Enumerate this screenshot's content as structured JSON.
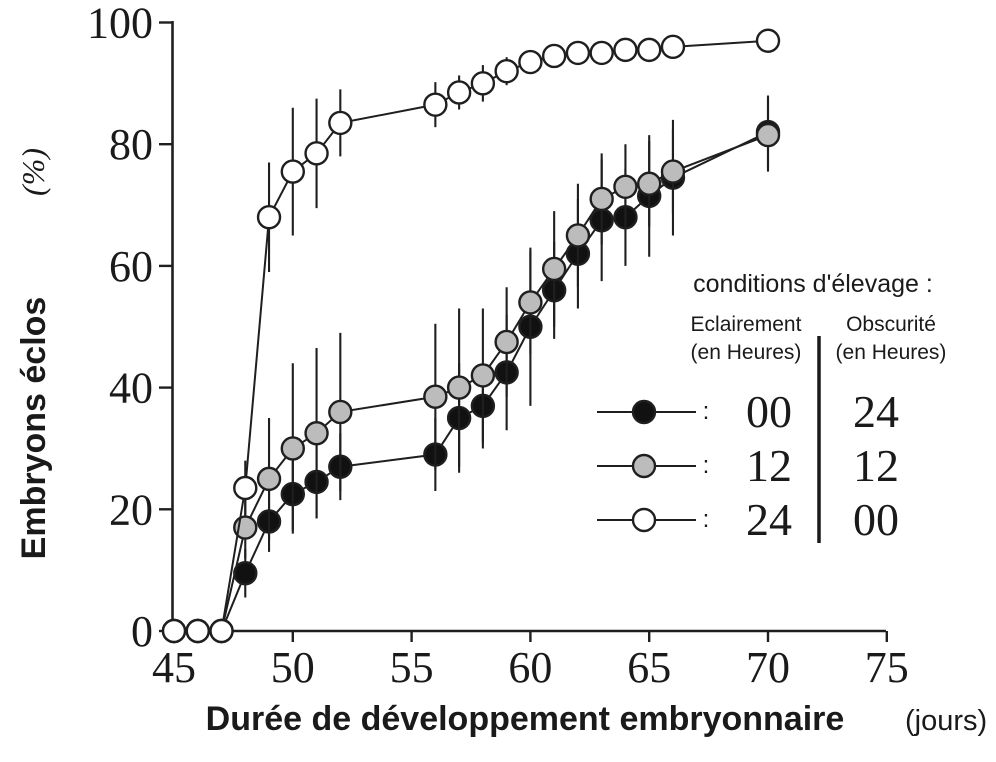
{
  "chart_data": {
    "type": "line",
    "xlabel": "Durée de développement embryonnaire",
    "xlabel_unit": "(jours)",
    "ylabel": "Embryons éclos",
    "ylabel_unit": "(%)",
    "xlim": [
      45,
      75
    ],
    "ylim": [
      0,
      100
    ],
    "xticks": [
      45,
      50,
      55,
      60,
      65,
      70,
      75
    ],
    "yticks": [
      0,
      20,
      40,
      60,
      80,
      100
    ],
    "grid": false,
    "marker_stroke": "#1f1f1f",
    "series": [
      {
        "name": "eclairement-00h-obscurite-24h",
        "label": "Eclairement 00 h / Obscurité 24 h",
        "fill": "#111111",
        "points": [
          {
            "x": 45,
            "y": 0,
            "e": 0
          },
          {
            "x": 46,
            "y": 0,
            "e": 0
          },
          {
            "x": 47,
            "y": 0,
            "e": 0
          },
          {
            "x": 48,
            "y": 9.5,
            "e": 4
          },
          {
            "x": 49,
            "y": 18,
            "e": 5
          },
          {
            "x": 50,
            "y": 22.5,
            "e": 6
          },
          {
            "x": 51,
            "y": 24.5,
            "e": 6
          },
          {
            "x": 52,
            "y": 27,
            "e": 5.5
          },
          {
            "x": 56,
            "y": 29,
            "e": 6
          },
          {
            "x": 57,
            "y": 35,
            "e": 9
          },
          {
            "x": 58,
            "y": 37,
            "e": 7
          },
          {
            "x": 59,
            "y": 42.5,
            "e": 9.5
          },
          {
            "x": 60,
            "y": 50,
            "e": 13
          },
          {
            "x": 61,
            "y": 56,
            "e": 8
          },
          {
            "x": 62,
            "y": 62,
            "e": 9
          },
          {
            "x": 63,
            "y": 67.5,
            "e": 10
          },
          {
            "x": 64,
            "y": 68,
            "e": 8
          },
          {
            "x": 65,
            "y": 71.5,
            "e": 10
          },
          {
            "x": 66,
            "y": 74.5,
            "e": 9.5
          },
          {
            "x": 70,
            "y": 82,
            "e": 6
          }
        ]
      },
      {
        "name": "eclairement-12h-obscurite-12h",
        "label": "Eclairement 12 h / Obscurité 12 h",
        "fill": "#bcbcbc",
        "points": [
          {
            "x": 45,
            "y": 0,
            "e": 0
          },
          {
            "x": 46,
            "y": 0,
            "e": 0
          },
          {
            "x": 47,
            "y": 0,
            "e": 0
          },
          {
            "x": 48,
            "y": 17,
            "e": 5
          },
          {
            "x": 49,
            "y": 25,
            "e": 10
          },
          {
            "x": 50,
            "y": 30,
            "e": 14
          },
          {
            "x": 51,
            "y": 32.5,
            "e": 14
          },
          {
            "x": 52,
            "y": 36,
            "e": 13
          },
          {
            "x": 56,
            "y": 38.5,
            "e": 12
          },
          {
            "x": 57,
            "y": 40,
            "e": 13
          },
          {
            "x": 58,
            "y": 42,
            "e": 11
          },
          {
            "x": 59,
            "y": 47.5,
            "e": 9
          },
          {
            "x": 60,
            "y": 54,
            "e": 8.5
          },
          {
            "x": 61,
            "y": 59.5,
            "e": 9.5
          },
          {
            "x": 62,
            "y": 65,
            "e": 8.5
          },
          {
            "x": 63,
            "y": 71,
            "e": 7.5
          },
          {
            "x": 64,
            "y": 73,
            "e": 7
          },
          {
            "x": 65,
            "y": 73.5,
            "e": 7
          },
          {
            "x": 66,
            "y": 75.5,
            "e": 7
          },
          {
            "x": 70,
            "y": 81.5,
            "e": 6
          }
        ]
      },
      {
        "name": "eclairement-24h-obscurite-00h",
        "label": "Eclairement 24 h / Obscurité 00 h",
        "fill": "#ffffff",
        "points": [
          {
            "x": 45,
            "y": 0,
            "e": 0
          },
          {
            "x": 46,
            "y": 0,
            "e": 0
          },
          {
            "x": 47,
            "y": 0,
            "e": 0
          },
          {
            "x": 48,
            "y": 23.5,
            "e": 4.5
          },
          {
            "x": 49,
            "y": 68,
            "e": 9
          },
          {
            "x": 50,
            "y": 75.5,
            "e": 10.5
          },
          {
            "x": 51,
            "y": 78.5,
            "e": 9
          },
          {
            "x": 52,
            "y": 83.5,
            "e": 5.5
          },
          {
            "x": 56,
            "y": 86.5,
            "e": 3.7
          },
          {
            "x": 57,
            "y": 88.5,
            "e": 2.8
          },
          {
            "x": 58,
            "y": 90,
            "e": 3
          },
          {
            "x": 59,
            "y": 92,
            "e": 2.3
          },
          {
            "x": 60,
            "y": 93.5,
            "e": 1.7
          },
          {
            "x": 61,
            "y": 94.5,
            "e": 1.4
          },
          {
            "x": 62,
            "y": 95,
            "e": 1.4
          },
          {
            "x": 63,
            "y": 95,
            "e": 1.3
          },
          {
            "x": 64,
            "y": 95.5,
            "e": 1.3
          },
          {
            "x": 65,
            "y": 95.5,
            "e": 1.3
          },
          {
            "x": 66,
            "y": 96,
            "e": 1.2
          },
          {
            "x": 70,
            "y": 97,
            "e": 1.3
          }
        ]
      }
    ],
    "legend": {
      "title": "conditions d'élevage :",
      "col1_header": "Eclairement",
      "col1_sub": "(en Heures)",
      "col2_header": "Obscurité",
      "col2_sub": "(en Heures)",
      "separator": ":",
      "rows": [
        {
          "marker": "black-circle",
          "fill": "#111111",
          "light": "00",
          "dark": "24"
        },
        {
          "marker": "gray-circle",
          "fill": "#bcbcbc",
          "light": "12",
          "dark": "12"
        },
        {
          "marker": "white-circle",
          "fill": "#ffffff",
          "light": "24",
          "dark": "00"
        }
      ]
    }
  }
}
